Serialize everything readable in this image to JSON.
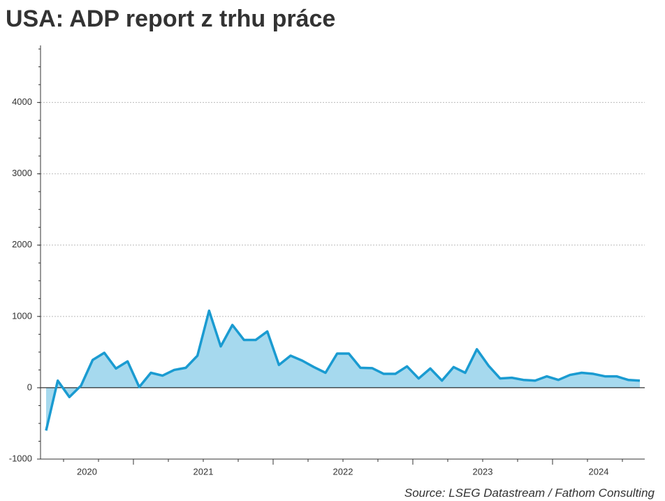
{
  "chart_data": {
    "type": "area",
    "title": "USA: ADP report z trhu práce",
    "source": "Source: LSEG Datastream / Fathom Consulting",
    "year_labels": [
      "2020",
      "2021",
      "2022",
      "2023",
      "2024"
    ],
    "series": [
      {
        "name": "ADP",
        "color": "#1a9bd1",
        "fill": "#a6d9ee",
        "values": [
          -600,
          100,
          -130,
          30,
          390,
          490,
          270,
          370,
          10,
          210,
          170,
          250,
          280,
          450,
          1080,
          580,
          880,
          670,
          670,
          790,
          320,
          450,
          380,
          290,
          210,
          480,
          480,
          280,
          275,
          195,
          195,
          300,
          130,
          270,
          100,
          290,
          210,
          540,
          310,
          130,
          140,
          110,
          100,
          160,
          110,
          180,
          210,
          195,
          160,
          160,
          110,
          100
        ]
      }
    ],
    "ylim": [
      -1000,
      4800
    ],
    "yticks": [
      -1000,
      0,
      1000,
      2000,
      3000,
      4000
    ],
    "grid": true
  }
}
